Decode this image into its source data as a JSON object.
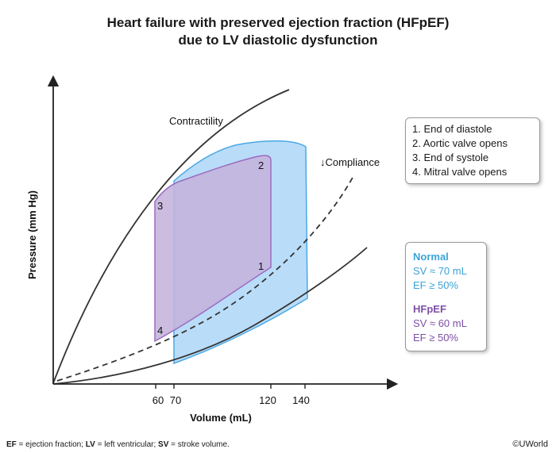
{
  "title": {
    "line1": "Heart failure with preserved ejection fraction (HFpEF)",
    "line2": "due to LV diastolic dysfunction"
  },
  "axes": {
    "ylabel": "Pressure (mm Hg)",
    "xlabel": "Volume (mL)",
    "xticks": [
      "60",
      "70",
      "120",
      "140"
    ]
  },
  "curve_labels": {
    "contractility": "Contractility",
    "compliance": "↓Compliance"
  },
  "point_labels": [
    "1",
    "2",
    "3",
    "4"
  ],
  "legend": [
    "1. End of diastole",
    "2. Aortic valve opens",
    "3. End of systole",
    "4. Mitral valve opens"
  ],
  "stroke_box": {
    "normal": {
      "title": "Normal",
      "sv": "SV ≈ 70 mL",
      "ef": "EF ≥ 50%",
      "color": "#3ba3d8"
    },
    "hfpef": {
      "title": "HFpEF",
      "sv": "SV ≈ 60 mL",
      "ef": "EF ≥ 50%",
      "color": "#7d4fa6"
    }
  },
  "footnote": {
    "ef_abbr": "EF",
    "ef_text": " = ejection fraction; ",
    "lv_abbr": "LV",
    "lv_text": " = left ventricular; ",
    "sv_abbr": "SV",
    "sv_text": " = stroke volume."
  },
  "copyright": "©UWorld",
  "colors": {
    "normal_fill": "#b9dcf8",
    "normal_stroke": "#4aa8e6",
    "hfpef_fill": "#c4b3dc",
    "hfpef_stroke": "#9a6cc0"
  }
}
